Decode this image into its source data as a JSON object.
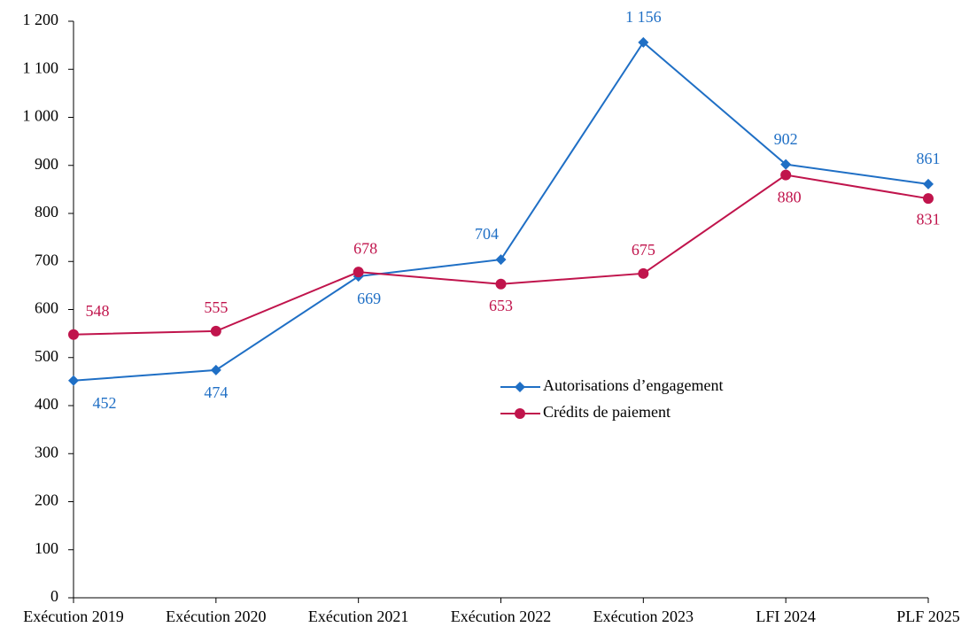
{
  "chart_data": {
    "type": "line",
    "categories": [
      "Exécution 2019",
      "Exécution 2020",
      "Exécution 2021",
      "Exécution 2022",
      "Exécution 2023",
      "LFI 2024",
      "PLF 2025"
    ],
    "series": [
      {
        "name": "Autorisations d’engagement",
        "color": "#1f6fc5",
        "marker": "diamond",
        "values": [
          452,
          474,
          669,
          704,
          1156,
          902,
          861
        ],
        "value_labels": [
          "452",
          "474",
          "669",
          "704",
          "1 156",
          "902",
          "861"
        ]
      },
      {
        "name": "Crédits de paiement",
        "color": "#c0144c",
        "marker": "circle",
        "values": [
          548,
          555,
          678,
          653,
          675,
          880,
          831
        ]
      }
    ],
    "ylim": [
      0,
      1200
    ],
    "yticks": [
      0,
      100,
      200,
      300,
      400,
      500,
      600,
      700,
      800,
      900,
      {
        "value": 1000,
        "label": "1 000"
      },
      {
        "value": 1100,
        "label": "1 100"
      },
      {
        "value": 1200,
        "label": "1 200"
      }
    ],
    "grid": false
  }
}
